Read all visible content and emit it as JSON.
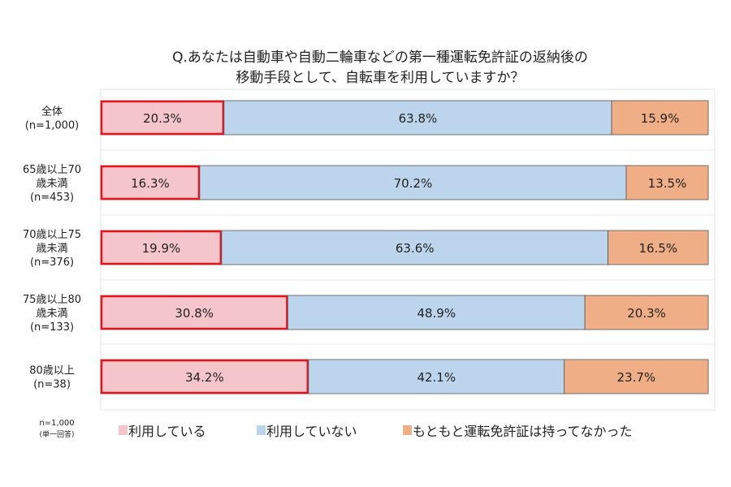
{
  "chart_data": {
    "type": "bar",
    "orientation": "horizontal",
    "stacked": true,
    "percent": true,
    "title": [
      "Q.あなたは自動車や自動二輪車などの第一種運転免許証の返納後の",
      "移動手段として、自転車を利用していますか？"
    ],
    "categories": [
      [
        "全体",
        "(n=1,000)"
      ],
      [
        "65歳以上70",
        "歳未満",
        "(n=453)"
      ],
      [
        "70歳以上75",
        "歳未満",
        "(n=376)"
      ],
      [
        "75歳以上80",
        "歳未満",
        "(n=133)"
      ],
      [
        "80歳以上",
        "(n=38)"
      ]
    ],
    "series": [
      {
        "name": "利用している",
        "values": [
          20.3,
          16.3,
          19.9,
          30.8,
          34.2
        ],
        "color": "#f4c6cb",
        "highlight_border": "#e3161e"
      },
      {
        "name": "利用していない",
        "values": [
          63.8,
          70.2,
          63.6,
          48.9,
          42.1
        ],
        "color": "#bdd5ec"
      },
      {
        "name": "もともと運転免許証は持ってなかった",
        "values": [
          15.9,
          13.5,
          16.5,
          20.3,
          23.7
        ],
        "color": "#efae85"
      }
    ],
    "data_label_suffix": "%",
    "xlim": [
      0,
      100
    ],
    "legend_placement": "bottom",
    "note": [
      "n=1,000",
      "(単一回答)"
    ]
  }
}
